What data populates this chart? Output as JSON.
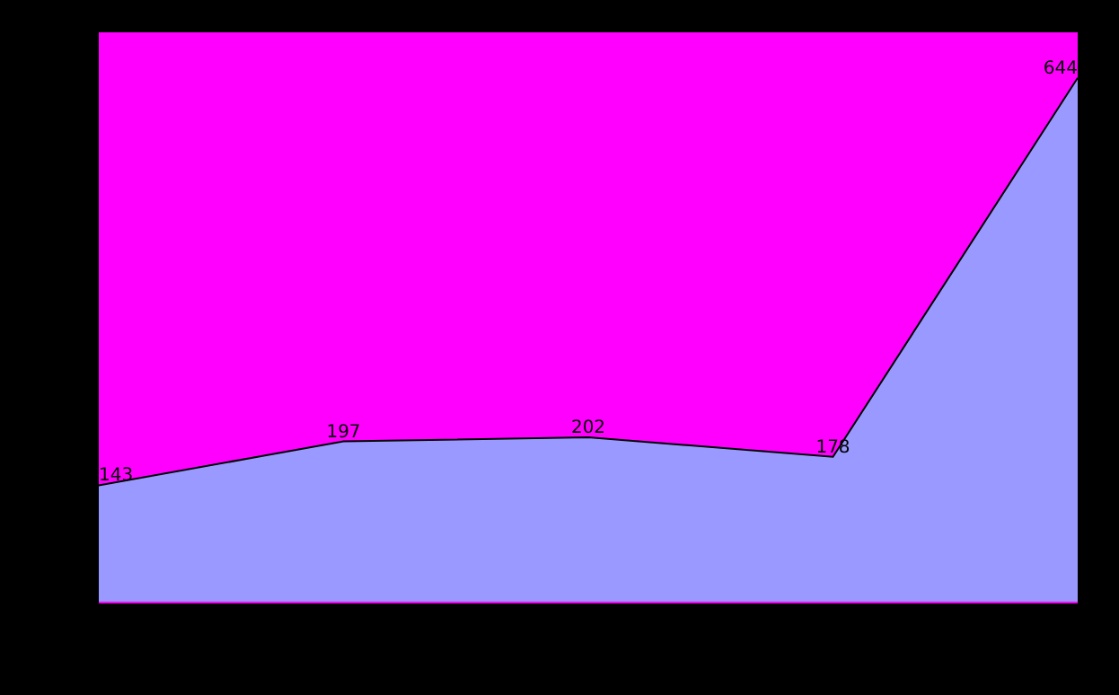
{
  "chart_data": {
    "type": "area",
    "categories": [
      null,
      null,
      null,
      null,
      null
    ],
    "series": [
      {
        "color": "#9999ff",
        "values": [
          143,
          197,
          202,
          178,
          644
        ]
      }
    ],
    "data_labels": true,
    "ylim": [
      0,
      700
    ],
    "marker": "none",
    "line_style": "solid"
  }
}
